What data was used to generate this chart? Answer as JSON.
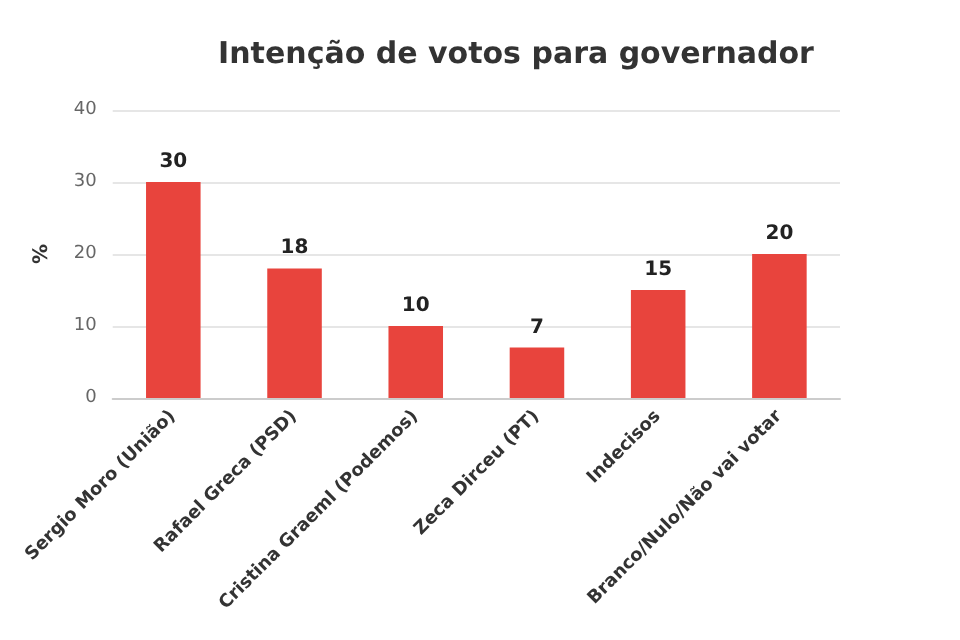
{
  "chart_data": {
    "type": "bar",
    "title": "Intenção de votos para governador",
    "ylabel": "%",
    "categories": [
      "Sergio Moro (União)",
      "Rafael Greca (PSD)",
      "Cristina Graeml (Podemos)",
      "Zeca Dirceu (PT)",
      "Indecisos",
      "Branco/Nulo/Não vai votar"
    ],
    "values": [
      30,
      18,
      10,
      7,
      15,
      20
    ],
    "color": "#e8443d",
    "ylim": [
      0,
      40
    ],
    "yticks": [
      0,
      10,
      20,
      30,
      40
    ],
    "grid": "y",
    "data_labels": true
  }
}
